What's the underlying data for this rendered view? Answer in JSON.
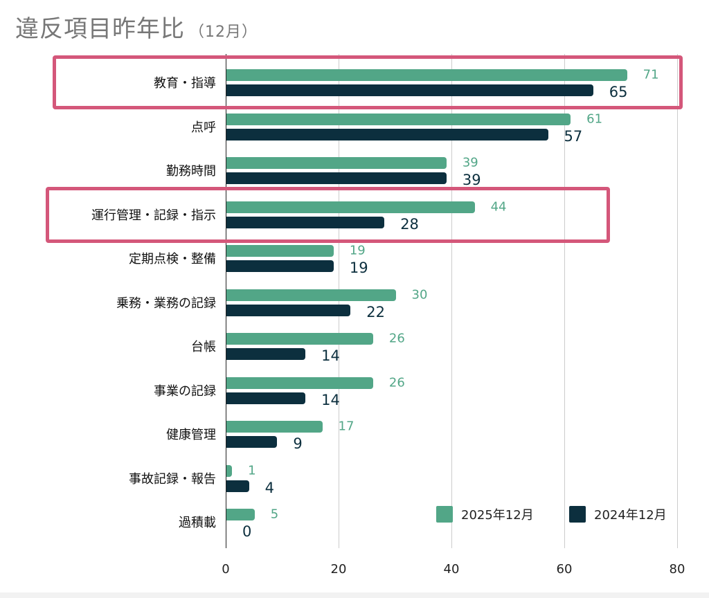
{
  "title": {
    "main": "違反項目昨年比",
    "sub": "（12月）"
  },
  "colors": {
    "series_2025": "#52a687",
    "series_2024": "#0c2f3e",
    "highlight": "#d4577a"
  },
  "legend": [
    {
      "label": "2025年12月",
      "color": "#52a687"
    },
    {
      "label": "2024年12月",
      "color": "#0c2f3e"
    }
  ],
  "highlighted_categories": [
    "教育・指導",
    "運行管理・記録・指示"
  ],
  "chart_data": {
    "type": "bar",
    "orientation": "horizontal",
    "title": "違反項目昨年比（12月）",
    "xlabel": "",
    "ylabel": "",
    "xlim": [
      0,
      80
    ],
    "x_ticks": [
      0,
      20,
      40,
      60,
      80
    ],
    "grid": true,
    "legend_position": "bottom-right inside",
    "categories": [
      "教育・指導",
      "点呼",
      "勤務時間",
      "運行管理・記録・指示",
      "定期点検・整備",
      "乗務・業務の記録",
      "台帳",
      "事業の記録",
      "健康管理",
      "事故記録・報告",
      "過積載"
    ],
    "series": [
      {
        "name": "2025年12月",
        "values": [
          71,
          61,
          39,
          44,
          19,
          30,
          26,
          26,
          17,
          1,
          5
        ]
      },
      {
        "name": "2024年12月",
        "values": [
          65,
          57,
          39,
          28,
          19,
          22,
          14,
          14,
          9,
          4,
          0
        ]
      }
    ]
  }
}
